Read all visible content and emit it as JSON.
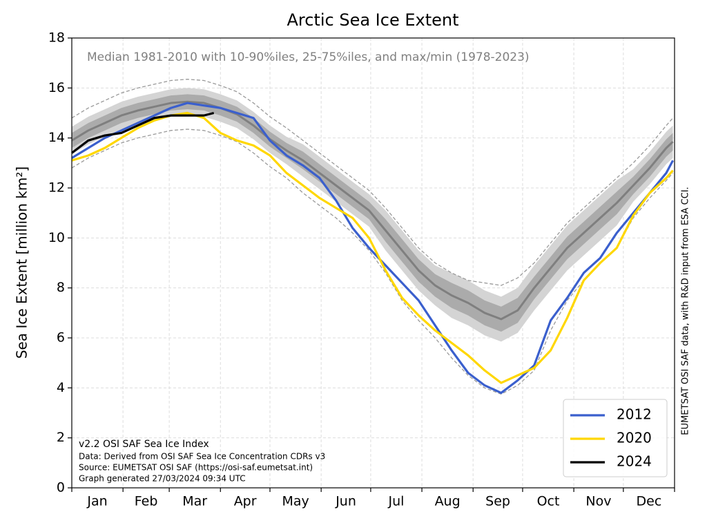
{
  "chart_data": {
    "type": "line",
    "title": "Arctic Sea Ice Extent",
    "subtitle": "Median 1981-2010 with 10-90%iles, 25-75%iles, and max/min (1978-2023)",
    "ylabel": "Sea Ice Extent [million km²]",
    "side_note": "EUMETSAT OSI SAF data, with R&D input from ESA CCI.",
    "footnotes": [
      "v2.2 OSI SAF Sea Ice Index",
      "Data: Derived from OSI SAF Sea Ice Concentration CDRs v3",
      "Source: EUMETSAT OSI SAF (https://osi-saf.eumetsat.int)",
      "Graph generated 27/03/2024 09:34 UTC"
    ],
    "months": [
      "Jan",
      "Feb",
      "Mar",
      "Apr",
      "May",
      "Jun",
      "Jul",
      "Aug",
      "Sep",
      "Oct",
      "Nov",
      "Dec"
    ],
    "xlim": [
      1,
      366
    ],
    "xticks": [
      1,
      32,
      60,
      91,
      121,
      152,
      182,
      213,
      244,
      274,
      305,
      335,
      366
    ],
    "ylim": [
      0,
      18
    ],
    "yticks": [
      0,
      2,
      4,
      6,
      8,
      10,
      12,
      14,
      16,
      18
    ],
    "grid": true,
    "legend": "lower right",
    "x": [
      1,
      11,
      21,
      31,
      41,
      51,
      61,
      71,
      81,
      91,
      101,
      111,
      121,
      131,
      141,
      151,
      161,
      171,
      181,
      191,
      201,
      211,
      221,
      231,
      241,
      251,
      261,
      271,
      281,
      291,
      301,
      311,
      321,
      331,
      341,
      351,
      361,
      365
    ],
    "bands": [
      {
        "color": "#d4d4d4",
        "lower": [
          13.35,
          13.75,
          14.05,
          14.35,
          14.55,
          14.7,
          14.85,
          14.9,
          14.85,
          14.65,
          14.4,
          13.95,
          13.4,
          12.95,
          12.45,
          11.95,
          11.45,
          10.95,
          10.45,
          9.5,
          8.7,
          7.9,
          7.3,
          6.8,
          6.5,
          6.1,
          5.85,
          6.2,
          7.1,
          7.9,
          8.7,
          9.3,
          9.9,
          10.5,
          11.45,
          12.15,
          12.95,
          13.2
        ],
        "upper": [
          14.45,
          14.85,
          15.15,
          15.45,
          15.65,
          15.8,
          15.95,
          16.0,
          15.95,
          15.75,
          15.5,
          15.05,
          14.5,
          14.05,
          13.75,
          13.25,
          12.75,
          12.25,
          11.75,
          11.1,
          10.3,
          9.5,
          8.9,
          8.6,
          8.3,
          7.9,
          7.65,
          8.0,
          8.9,
          9.7,
          10.5,
          11.1,
          11.7,
          12.3,
          12.75,
          13.45,
          14.25,
          14.5
        ]
      },
      {
        "color": "#ababab",
        "lower": [
          13.6,
          14.0,
          14.3,
          14.6,
          14.8,
          14.95,
          15.1,
          15.15,
          15.1,
          14.9,
          14.65,
          14.2,
          13.65,
          13.2,
          12.75,
          12.25,
          11.75,
          11.25,
          10.75,
          9.85,
          9.05,
          8.25,
          7.65,
          7.2,
          6.9,
          6.5,
          6.25,
          6.6,
          7.55,
          8.35,
          9.15,
          9.75,
          10.35,
          10.95,
          11.75,
          12.45,
          13.25,
          13.5
        ],
        "upper": [
          14.2,
          14.6,
          14.9,
          15.2,
          15.4,
          15.55,
          15.7,
          15.75,
          15.7,
          15.5,
          15.25,
          14.8,
          14.25,
          13.8,
          13.45,
          12.95,
          12.45,
          11.95,
          11.45,
          10.75,
          9.95,
          9.15,
          8.55,
          8.2,
          7.9,
          7.5,
          7.25,
          7.6,
          8.45,
          9.25,
          10.05,
          10.65,
          11.25,
          11.85,
          12.45,
          13.15,
          13.95,
          14.2
        ]
      }
    ],
    "minmax": {
      "color": "#999999",
      "lower": [
        12.8,
        13.2,
        13.5,
        13.8,
        14.0,
        14.15,
        14.3,
        14.35,
        14.3,
        14.1,
        13.85,
        13.4,
        12.85,
        12.4,
        11.8,
        11.3,
        10.8,
        10.2,
        9.5,
        8.6,
        7.5,
        6.7,
        6.0,
        5.2,
        4.5,
        4.0,
        3.75,
        4.1,
        4.7,
        6.3,
        7.5,
        8.3,
        9.0,
        9.6,
        10.8,
        11.6,
        12.3,
        12.6
      ],
      "upper": [
        14.8,
        15.2,
        15.5,
        15.8,
        16.0,
        16.15,
        16.3,
        16.35,
        16.3,
        16.1,
        15.85,
        15.4,
        14.85,
        14.4,
        13.9,
        13.4,
        12.9,
        12.4,
        11.9,
        11.2,
        10.4,
        9.6,
        9.0,
        8.6,
        8.3,
        8.2,
        8.1,
        8.4,
        9.0,
        9.8,
        10.6,
        11.2,
        11.8,
        12.4,
        13.0,
        13.7,
        14.5,
        14.8
      ]
    },
    "median": {
      "color": "#7f7f7f",
      "values": [
        13.9,
        14.3,
        14.6,
        14.9,
        15.1,
        15.25,
        15.4,
        15.45,
        15.4,
        15.2,
        14.95,
        14.5,
        13.95,
        13.5,
        13.1,
        12.6,
        12.1,
        11.6,
        11.1,
        10.3,
        9.5,
        8.7,
        8.1,
        7.7,
        7.4,
        7.0,
        6.75,
        7.1,
        8.0,
        8.8,
        9.6,
        10.2,
        10.8,
        11.4,
        12.1,
        12.8,
        13.6,
        13.85
      ]
    },
    "series": [
      {
        "name": "2012",
        "color": "#3a5fcd",
        "values": [
          13.2,
          13.6,
          14.0,
          14.3,
          14.6,
          14.9,
          15.2,
          15.4,
          15.3,
          15.2,
          15.0,
          14.8,
          13.9,
          13.3,
          12.9,
          12.4,
          11.5,
          10.4,
          9.6,
          8.9,
          8.2,
          7.5,
          6.5,
          5.5,
          4.6,
          4.1,
          3.8,
          4.3,
          4.9,
          6.7,
          7.6,
          8.6,
          9.2,
          10.2,
          11.0,
          11.8,
          12.6,
          13.1
        ]
      },
      {
        "name": "2020",
        "color": "#ffd700",
        "values": [
          13.1,
          13.3,
          13.6,
          14.0,
          14.4,
          14.7,
          14.9,
          15.0,
          14.8,
          14.2,
          13.9,
          13.7,
          13.3,
          12.6,
          12.1,
          11.6,
          11.2,
          10.8,
          10.0,
          8.7,
          7.6,
          6.9,
          6.3,
          5.8,
          5.3,
          4.7,
          4.2,
          4.5,
          4.8,
          5.5,
          6.8,
          8.3,
          9.0,
          9.6,
          10.9,
          11.8,
          12.4,
          12.7
        ]
      },
      {
        "name": "2024",
        "color": "#000000",
        "x": [
          1,
          11,
          21,
          31,
          41,
          51,
          61,
          71,
          81,
          87
        ],
        "values": [
          13.4,
          13.9,
          14.1,
          14.2,
          14.5,
          14.8,
          14.9,
          14.9,
          14.9,
          15.0
        ]
      }
    ]
  }
}
